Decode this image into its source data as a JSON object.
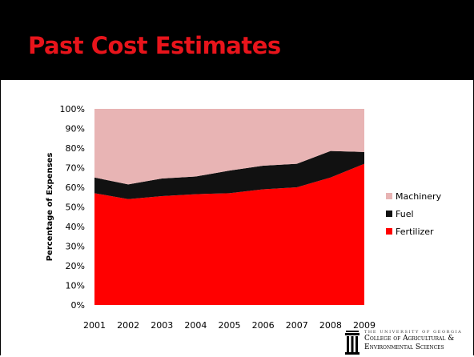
{
  "slide": {
    "title": "Past Cost Estimates",
    "logo": {
      "line1": "THE UNIVERSITY OF GEORGIA",
      "line2": "College of Agricultural &",
      "line3": "Environmental Sciences"
    }
  },
  "colors": {
    "title": "#e8141b",
    "header_bg": "#000000",
    "machinery": "#e8b4b4",
    "fuel": "#111111",
    "fertilizer": "#ff0000"
  },
  "chart_data": {
    "type": "area",
    "stacked": "percent",
    "title": "",
    "xlabel": "",
    "ylabel": "Percentage of Expenses",
    "x": [
      "2001",
      "2002",
      "2003",
      "2004",
      "2005",
      "2006",
      "2007",
      "2008",
      "2009"
    ],
    "yticks": [
      "0%",
      "10%",
      "20%",
      "30%",
      "40%",
      "50%",
      "60%",
      "70%",
      "80%",
      "90%",
      "100%"
    ],
    "ylim": [
      0,
      100
    ],
    "grid": false,
    "legend_position": "right",
    "series": [
      {
        "name": "Fertilizer",
        "color": "#ff0000",
        "values": [
          57,
          54,
          55.5,
          56.5,
          57,
          59,
          60,
          65,
          72
        ]
      },
      {
        "name": "Fuel",
        "color": "#111111",
        "values": [
          8,
          7.5,
          9,
          9,
          11.5,
          12,
          12,
          13.5,
          6
        ]
      },
      {
        "name": "Machinery",
        "color": "#e8b4b4",
        "values": [
          35,
          38.5,
          35.5,
          34.5,
          31.5,
          29,
          28,
          21.5,
          22
        ]
      }
    ],
    "legend_order": [
      "Machinery",
      "Fuel",
      "Fertilizer"
    ]
  }
}
